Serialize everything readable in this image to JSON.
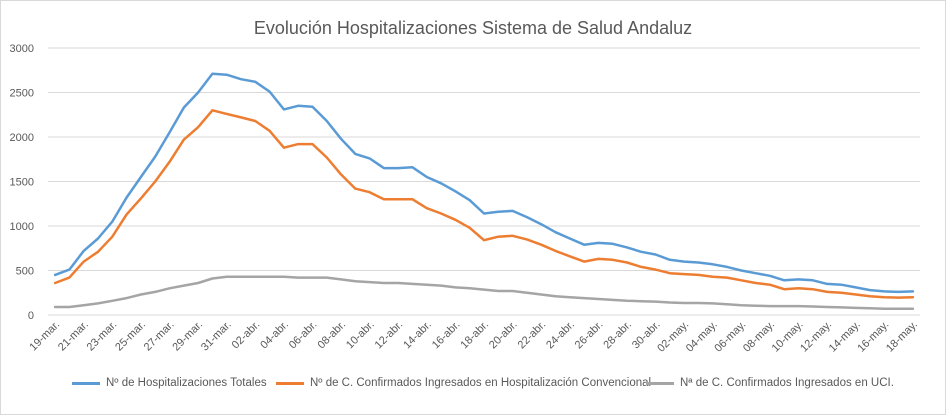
{
  "colors": {
    "totales": "#5b9bd5",
    "convencional": "#ed7d31",
    "uci": "#a5a5a5",
    "grid": "#d9d9d9",
    "text": "#595959"
  },
  "chart_data": {
    "type": "line",
    "title": "Evolución Hospitalizaciones Sistema de Salud Andaluz",
    "xlabel": "",
    "ylabel": "",
    "ylim": [
      0,
      3000
    ],
    "yticks": [
      0,
      500,
      1000,
      1500,
      2000,
      2500,
      3000
    ],
    "grid": true,
    "legend": "bottom",
    "x": [
      "19-mar.",
      "20-mar.",
      "21-mar.",
      "22-mar.",
      "23-mar.",
      "24-mar.",
      "25-mar.",
      "26-mar.",
      "27-mar.",
      "28-mar.",
      "29-mar.",
      "30-mar.",
      "31-mar.",
      "01-abr.",
      "02-abr.",
      "03-abr.",
      "04-abr.",
      "05-abr.",
      "06-abr.",
      "07-abr.",
      "08-abr.",
      "09-abr.",
      "10-abr.",
      "11-abr.",
      "12-abr.",
      "13-abr.",
      "14-abr.",
      "15-abr.",
      "16-abr.",
      "17-abr.",
      "18-abr.",
      "19-abr.",
      "20-abr.",
      "21-abr.",
      "22-abr.",
      "23-abr.",
      "24-abr.",
      "25-abr.",
      "26-abr.",
      "27-abr.",
      "28-abr.",
      "29-abr.",
      "30-abr.",
      "01-may.",
      "02-may.",
      "03-may.",
      "04-may.",
      "05-may.",
      "06-may.",
      "07-may.",
      "08-may.",
      "09-may.",
      "10-may.",
      "11-may.",
      "12-may.",
      "13-may.",
      "14-may.",
      "15-may.",
      "16-may.",
      "17-may.",
      "18-may."
    ],
    "xtick_labels": [
      "19-mar.",
      "21-mar.",
      "23-mar.",
      "25-mar.",
      "27-mar.",
      "29-mar.",
      "31-mar.",
      "02-abr.",
      "04-abr.",
      "06-abr.",
      "08-abr.",
      "10-abr.",
      "12-abr.",
      "14-abr.",
      "16-abr.",
      "18-abr.",
      "20-abr.",
      "22-abr.",
      "24-abr.",
      "26-abr.",
      "28-abr.",
      "30-abr.",
      "02-may.",
      "04-may.",
      "06-may.",
      "08-may.",
      "10-may.",
      "12-may.",
      "14-may.",
      "16-may.",
      "18-may."
    ],
    "series": [
      {
        "name": "Nº de Hospitalizaciones Totales",
        "color": "#5b9bd5",
        "values": [
          450,
          510,
          720,
          860,
          1050,
          1320,
          1550,
          1780,
          2050,
          2330,
          2500,
          2710,
          2700,
          2650,
          2620,
          2510,
          2310,
          2350,
          2340,
          2180,
          1980,
          1810,
          1760,
          1650,
          1650,
          1660,
          1550,
          1480,
          1390,
          1290,
          1140,
          1160,
          1170,
          1100,
          1020,
          930,
          860,
          790,
          810,
          800,
          760,
          710,
          680,
          620,
          600,
          590,
          570,
          540,
          500,
          470,
          440,
          390,
          400,
          390,
          350,
          340,
          310,
          280,
          265,
          260,
          265
        ]
      },
      {
        "name": "Nº de C. Confirmados Ingresados en Hospitalización Convencional",
        "color": "#ed7d31",
        "values": [
          360,
          420,
          600,
          710,
          880,
          1130,
          1310,
          1500,
          1720,
          1970,
          2110,
          2300,
          2260,
          2220,
          2180,
          2070,
          1880,
          1920,
          1920,
          1770,
          1580,
          1420,
          1380,
          1300,
          1300,
          1300,
          1200,
          1140,
          1070,
          980,
          840,
          880,
          890,
          850,
          790,
          720,
          660,
          600,
          630,
          620,
          590,
          540,
          510,
          470,
          460,
          450,
          430,
          420,
          390,
          360,
          340,
          290,
          300,
          290,
          260,
          250,
          230,
          210,
          200,
          195,
          200
        ]
      },
      {
        "name": "Nª de C. Confirmados Ingresados en UCI.",
        "color": "#a5a5a5",
        "values": [
          90,
          90,
          110,
          130,
          160,
          190,
          230,
          260,
          300,
          330,
          360,
          410,
          430,
          430,
          430,
          430,
          430,
          420,
          420,
          420,
          400,
          380,
          370,
          360,
          360,
          350,
          340,
          330,
          310,
          300,
          285,
          270,
          270,
          250,
          230,
          210,
          200,
          190,
          180,
          170,
          160,
          155,
          150,
          140,
          135,
          135,
          130,
          120,
          110,
          105,
          100,
          100,
          100,
          95,
          90,
          85,
          80,
          75,
          70,
          70,
          70
        ]
      }
    ]
  }
}
